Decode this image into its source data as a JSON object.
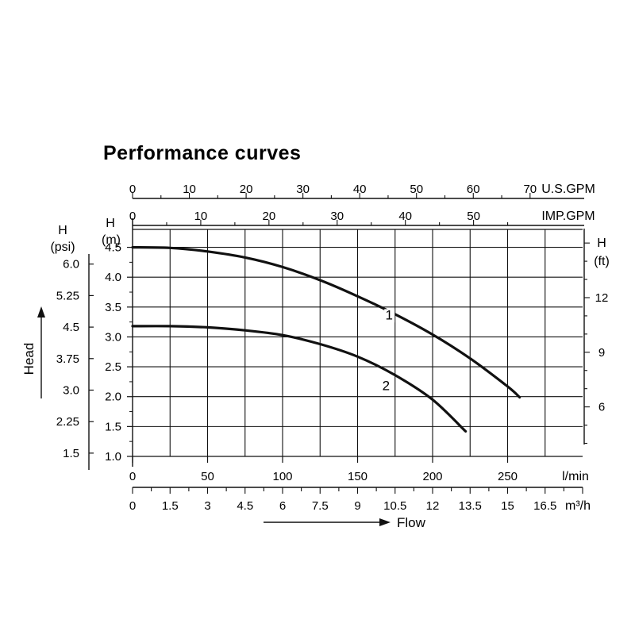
{
  "chart_data": {
    "type": "line",
    "title": "Performance curves",
    "x": {
      "label": "Flow",
      "primary": {
        "unit": "l/min",
        "range": [
          0,
          300
        ],
        "ticks": [
          0,
          50,
          100,
          150,
          200,
          250
        ]
      },
      "secondary": {
        "unit": "m³/h",
        "ticks": [
          "0",
          "1.5",
          "3",
          "4.5",
          "6",
          "7.5",
          "9",
          "10.5",
          "12",
          "13.5",
          "15",
          "16.5"
        ]
      },
      "top1": {
        "unit": "U.S.GPM",
        "ticks": [
          "0",
          "10",
          "20",
          "30",
          "40",
          "50",
          "60",
          "70"
        ]
      },
      "top2": {
        "unit": "IMP.GPM",
        "ticks": [
          "0",
          "10",
          "20",
          "30",
          "40",
          "50"
        ]
      }
    },
    "y": {
      "label": "Head",
      "primary": {
        "unit": "H\n(m)",
        "range": [
          1.0,
          4.8
        ],
        "ticks": [
          "1.0",
          "1.5",
          "2.0",
          "2.5",
          "3.0",
          "3.5",
          "4.0",
          "4.5"
        ]
      },
      "psi": {
        "unit": "H\n(psi)",
        "ticks": [
          "1.5",
          "2.25",
          "3.0",
          "3.75",
          "4.5",
          "5.25",
          "6.0"
        ]
      },
      "ft": {
        "unit": "H\n(ft)",
        "ticks": [
          "6",
          "9",
          "12"
        ]
      }
    },
    "grid": true,
    "series": [
      {
        "name": "1",
        "x": [
          0,
          25,
          50,
          75,
          100,
          125,
          150,
          175,
          200,
          225,
          250,
          258
        ],
        "y": [
          4.5,
          4.49,
          4.43,
          4.33,
          4.17,
          3.95,
          3.68,
          3.38,
          3.04,
          2.64,
          2.17,
          1.99
        ]
      },
      {
        "name": "2",
        "x": [
          0,
          25,
          50,
          75,
          100,
          125,
          150,
          175,
          200,
          222
        ],
        "y": [
          3.18,
          3.18,
          3.16,
          3.11,
          3.03,
          2.88,
          2.67,
          2.36,
          1.95,
          1.42
        ]
      }
    ]
  }
}
